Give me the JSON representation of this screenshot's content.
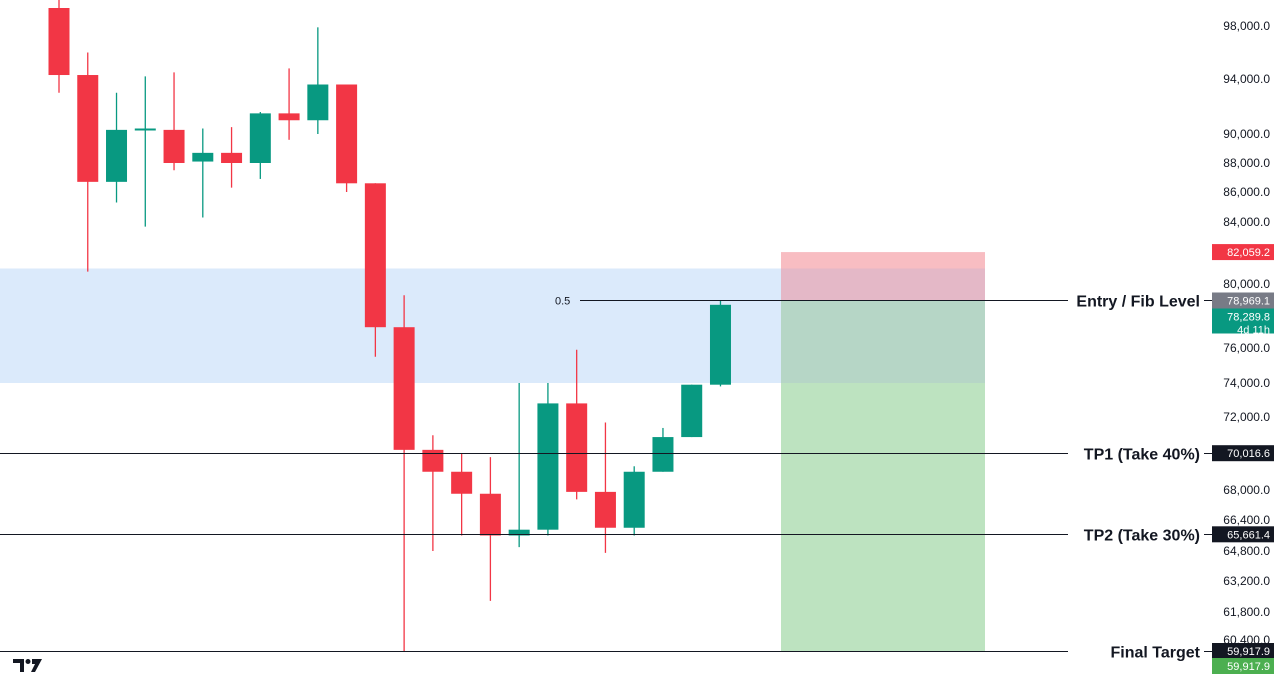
{
  "chart_data": {
    "type": "candlestick",
    "y_axis_ticks": [
      98000,
      94000,
      90000,
      88000,
      86000,
      84000,
      80000,
      76000,
      74000,
      72000,
      68000,
      66400,
      64800,
      63200,
      61800,
      60400
    ],
    "candles": [
      {
        "open": 99500,
        "high": 100500,
        "low": 93000,
        "close": 94300
      },
      {
        "open": 94300,
        "high": 96000,
        "low": 80800,
        "close": 86700
      },
      {
        "open": 86700,
        "high": 93000,
        "low": 85300,
        "close": 90300
      },
      {
        "open": 90400,
        "high": 94200,
        "low": 83700,
        "close": 90400
      },
      {
        "open": 90300,
        "high": 94500,
        "low": 87500,
        "close": 88000
      },
      {
        "open": 88100,
        "high": 90400,
        "low": 84300,
        "close": 88700
      },
      {
        "open": 88700,
        "high": 90500,
        "low": 86300,
        "close": 88000
      },
      {
        "open": 88000,
        "high": 91600,
        "low": 86900,
        "close": 91500
      },
      {
        "open": 91500,
        "high": 94800,
        "low": 89600,
        "close": 91000
      },
      {
        "open": 91000,
        "high": 97900,
        "low": 90000,
        "close": 93600
      },
      {
        "open": 93600,
        "high": 93600,
        "low": 86000,
        "close": 86600
      },
      {
        "open": 86600,
        "high": 86600,
        "low": 75500,
        "close": 77300
      },
      {
        "open": 77300,
        "high": 79300,
        "low": 59917.9,
        "close": 70200
      },
      {
        "open": 70200,
        "high": 71000,
        "low": 64800,
        "close": 69000
      },
      {
        "open": 69000,
        "high": 70000,
        "low": 65600,
        "close": 67800
      },
      {
        "open": 67800,
        "high": 69800,
        "low": 62300,
        "close": 65600
      },
      {
        "open": 65600,
        "high": 74000,
        "low": 65000,
        "close": 65900
      },
      {
        "open": 65900,
        "high": 74000,
        "low": 65600,
        "close": 72800
      },
      {
        "open": 72800,
        "high": 75900,
        "low": 67500,
        "close": 67900
      },
      {
        "open": 67900,
        "high": 71700,
        "low": 64700,
        "close": 66000
      },
      {
        "open": 66000,
        "high": 69300,
        "low": 65600,
        "close": 69000
      },
      {
        "open": 69000,
        "high": 71400,
        "low": 69000,
        "close": 70900
      },
      {
        "open": 70900,
        "high": 73900,
        "low": 70900,
        "close": 73900
      },
      {
        "open": 73900,
        "high": 79000,
        "low": 73800,
        "close": 78700
      }
    ],
    "zone": {
      "low": 74000,
      "high": 81000
    },
    "fib_level": {
      "label": "0.5",
      "value": 78969.1
    },
    "position": {
      "entry": 78969.1,
      "stop": 82059.2,
      "target": 59917.9
    },
    "horizontal_lines": [
      {
        "label": "Entry / Fib Level",
        "value": 78969.1,
        "tag": "78,969.1"
      },
      {
        "label": "TP1 (Take 40%)",
        "value": 70016.6,
        "tag": "70,016.6"
      },
      {
        "label": "TP2 (Take 30%)",
        "value": 65661.4,
        "tag": "65,661.4"
      },
      {
        "label": "Final Target",
        "value": 59917.9,
        "tag": "59,917.9"
      }
    ],
    "price_tags": {
      "stop": "82,059.2",
      "current": "78,289.8",
      "countdown": "4d 11h",
      "target_green": "59,917.9"
    },
    "colors": {
      "up": "#089981",
      "down": "#f23645",
      "zone": "#dbeafb",
      "stop_box": "#f8b9bf",
      "target_box": "#b9e2bd",
      "entry_tag": "#787b86",
      "green_tag": "#4caf50"
    }
  }
}
